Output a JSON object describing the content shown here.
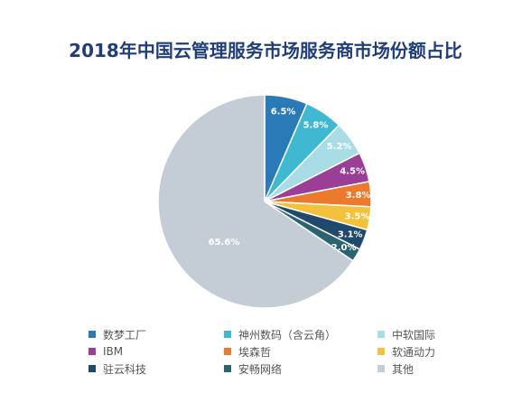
{
  "chart_data": {
    "type": "pie",
    "title": "2018年中国云管理服务市场服务商市场份额占比",
    "slices": [
      {
        "label": "数梦工厂",
        "value": 6.5,
        "display": "6.5%",
        "color": "#2b7ab8"
      },
      {
        "label": "神州数码（含云角）",
        "value": 5.8,
        "display": "5.8%",
        "color": "#3fb8d2"
      },
      {
        "label": "中软国际",
        "value": 5.2,
        "display": "5.2%",
        "color": "#a8dde7"
      },
      {
        "label": "IBM",
        "value": 4.5,
        "display": "4.5%",
        "color": "#9b3f96"
      },
      {
        "label": "埃森哲",
        "value": 3.8,
        "display": "3.8%",
        "color": "#ec7a2d"
      },
      {
        "label": "软通动力",
        "value": 3.5,
        "display": "3.5%",
        "color": "#f4c13a"
      },
      {
        "label": "驻云科技",
        "value": 3.1,
        "display": "3.1%",
        "color": "#1f4a6b"
      },
      {
        "label": "安畅网络",
        "value": 2.0,
        "display": "2.0%",
        "color": "#2a6470"
      },
      {
        "label": "其他",
        "value": 65.6,
        "display": "65.6%",
        "color": "#c4cdd6"
      }
    ],
    "legend_position": "bottom"
  }
}
